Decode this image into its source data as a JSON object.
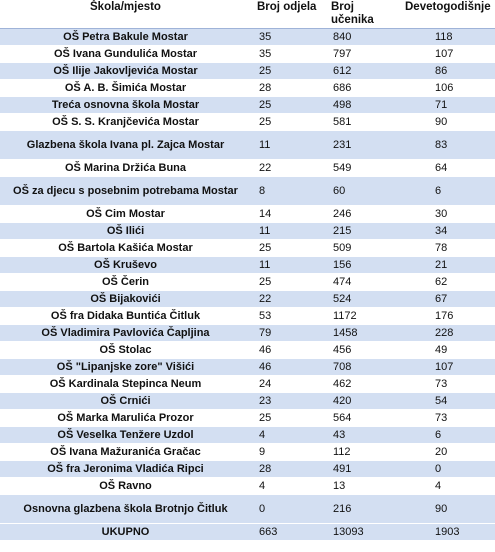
{
  "table": {
    "headers": [
      "Škola/mjesto",
      "Broj odjela",
      "Broj učenika",
      "Devetogodišnje"
    ],
    "rows": [
      {
        "school": "OŠ Petra Bakule Mostar",
        "odjela": "35",
        "ucenika": "840",
        "devet": "118"
      },
      {
        "school": "OŠ Ivana Gundulića Mostar",
        "odjela": "35",
        "ucenika": "797",
        "devet": "107"
      },
      {
        "school": "OŠ Ilije Jakovljevića Mostar",
        "odjela": "25",
        "ucenika": "612",
        "devet": "86"
      },
      {
        "school": "OŠ A. B. Šimića Mostar",
        "odjela": "28",
        "ucenika": "686",
        "devet": "106"
      },
      {
        "school": "Treća osnovna škola Mostar",
        "odjela": "25",
        "ucenika": "498",
        "devet": "71"
      },
      {
        "school": "OŠ S. S. Kranjčevića Mostar",
        "odjela": "25",
        "ucenika": "581",
        "devet": "90"
      },
      {
        "school": "Glazbena škola Ivana pl. Zajca Mostar",
        "odjela": "11",
        "ucenika": "231",
        "devet": "83"
      },
      {
        "school": "OŠ Marina Držića Buna",
        "odjela": "22",
        "ucenika": "549",
        "devet": "64"
      },
      {
        "school": "OŠ za djecu s posebnim potrebama Mostar",
        "odjela": "8",
        "ucenika": "60",
        "devet": "6"
      },
      {
        "school": "OŠ Cim Mostar",
        "odjela": "14",
        "ucenika": "246",
        "devet": "30"
      },
      {
        "school": "OŠ Ilići",
        "odjela": "11",
        "ucenika": "215",
        "devet": "34"
      },
      {
        "school": "OŠ Bartola Kašića Mostar",
        "odjela": "25",
        "ucenika": "509",
        "devet": "78"
      },
      {
        "school": "OŠ Kruševo",
        "odjela": "11",
        "ucenika": "156",
        "devet": "21"
      },
      {
        "school": "OŠ Čerin",
        "odjela": "25",
        "ucenika": "474",
        "devet": "62"
      },
      {
        "school": "OŠ Bijakovići",
        "odjela": "22",
        "ucenika": "524",
        "devet": "67"
      },
      {
        "school": "OŠ fra Didaka Buntića Čitluk",
        "odjela": "53",
        "ucenika": "1172",
        "devet": "176"
      },
      {
        "school": "OŠ Vladimira Pavlovića Čapljina",
        "odjela": "79",
        "ucenika": "1458",
        "devet": "228"
      },
      {
        "school": "OŠ Stolac",
        "odjela": "46",
        "ucenika": "456",
        "devet": "49"
      },
      {
        "school": "OŠ \"Lipanjske zore\" Višići",
        "odjela": "46",
        "ucenika": "708",
        "devet": "107"
      },
      {
        "school": "OŠ Kardinala Stepinca Neum",
        "odjela": "24",
        "ucenika": "462",
        "devet": "73"
      },
      {
        "school": "OŠ Crnići",
        "odjela": "23",
        "ucenika": "420",
        "devet": "54"
      },
      {
        "school": "OŠ Marka Marulića Prozor",
        "odjela": "25",
        "ucenika": "564",
        "devet": "73"
      },
      {
        "school": "OŠ Veselka Tenžere Uzdol",
        "odjela": "4",
        "ucenika": "43",
        "devet": "6"
      },
      {
        "school": "OŠ Ivana Mažuranića Gračac",
        "odjela": "9",
        "ucenika": "112",
        "devet": "20"
      },
      {
        "school": "OŠ fra Jeronima Vladića Ripci",
        "odjela": "28",
        "ucenika": "491",
        "devet": "0"
      },
      {
        "school": "OŠ Ravno",
        "odjela": "4",
        "ucenika": "13",
        "devet": "4"
      },
      {
        "school": "Osnovna glazbena škola Brotnjo Čitluk",
        "odjela": "0",
        "ucenika": "216",
        "devet": "90"
      }
    ],
    "total": {
      "label": "UKUPNO",
      "odjela": "663",
      "ucenika": "13093",
      "devet": "1903"
    }
  }
}
